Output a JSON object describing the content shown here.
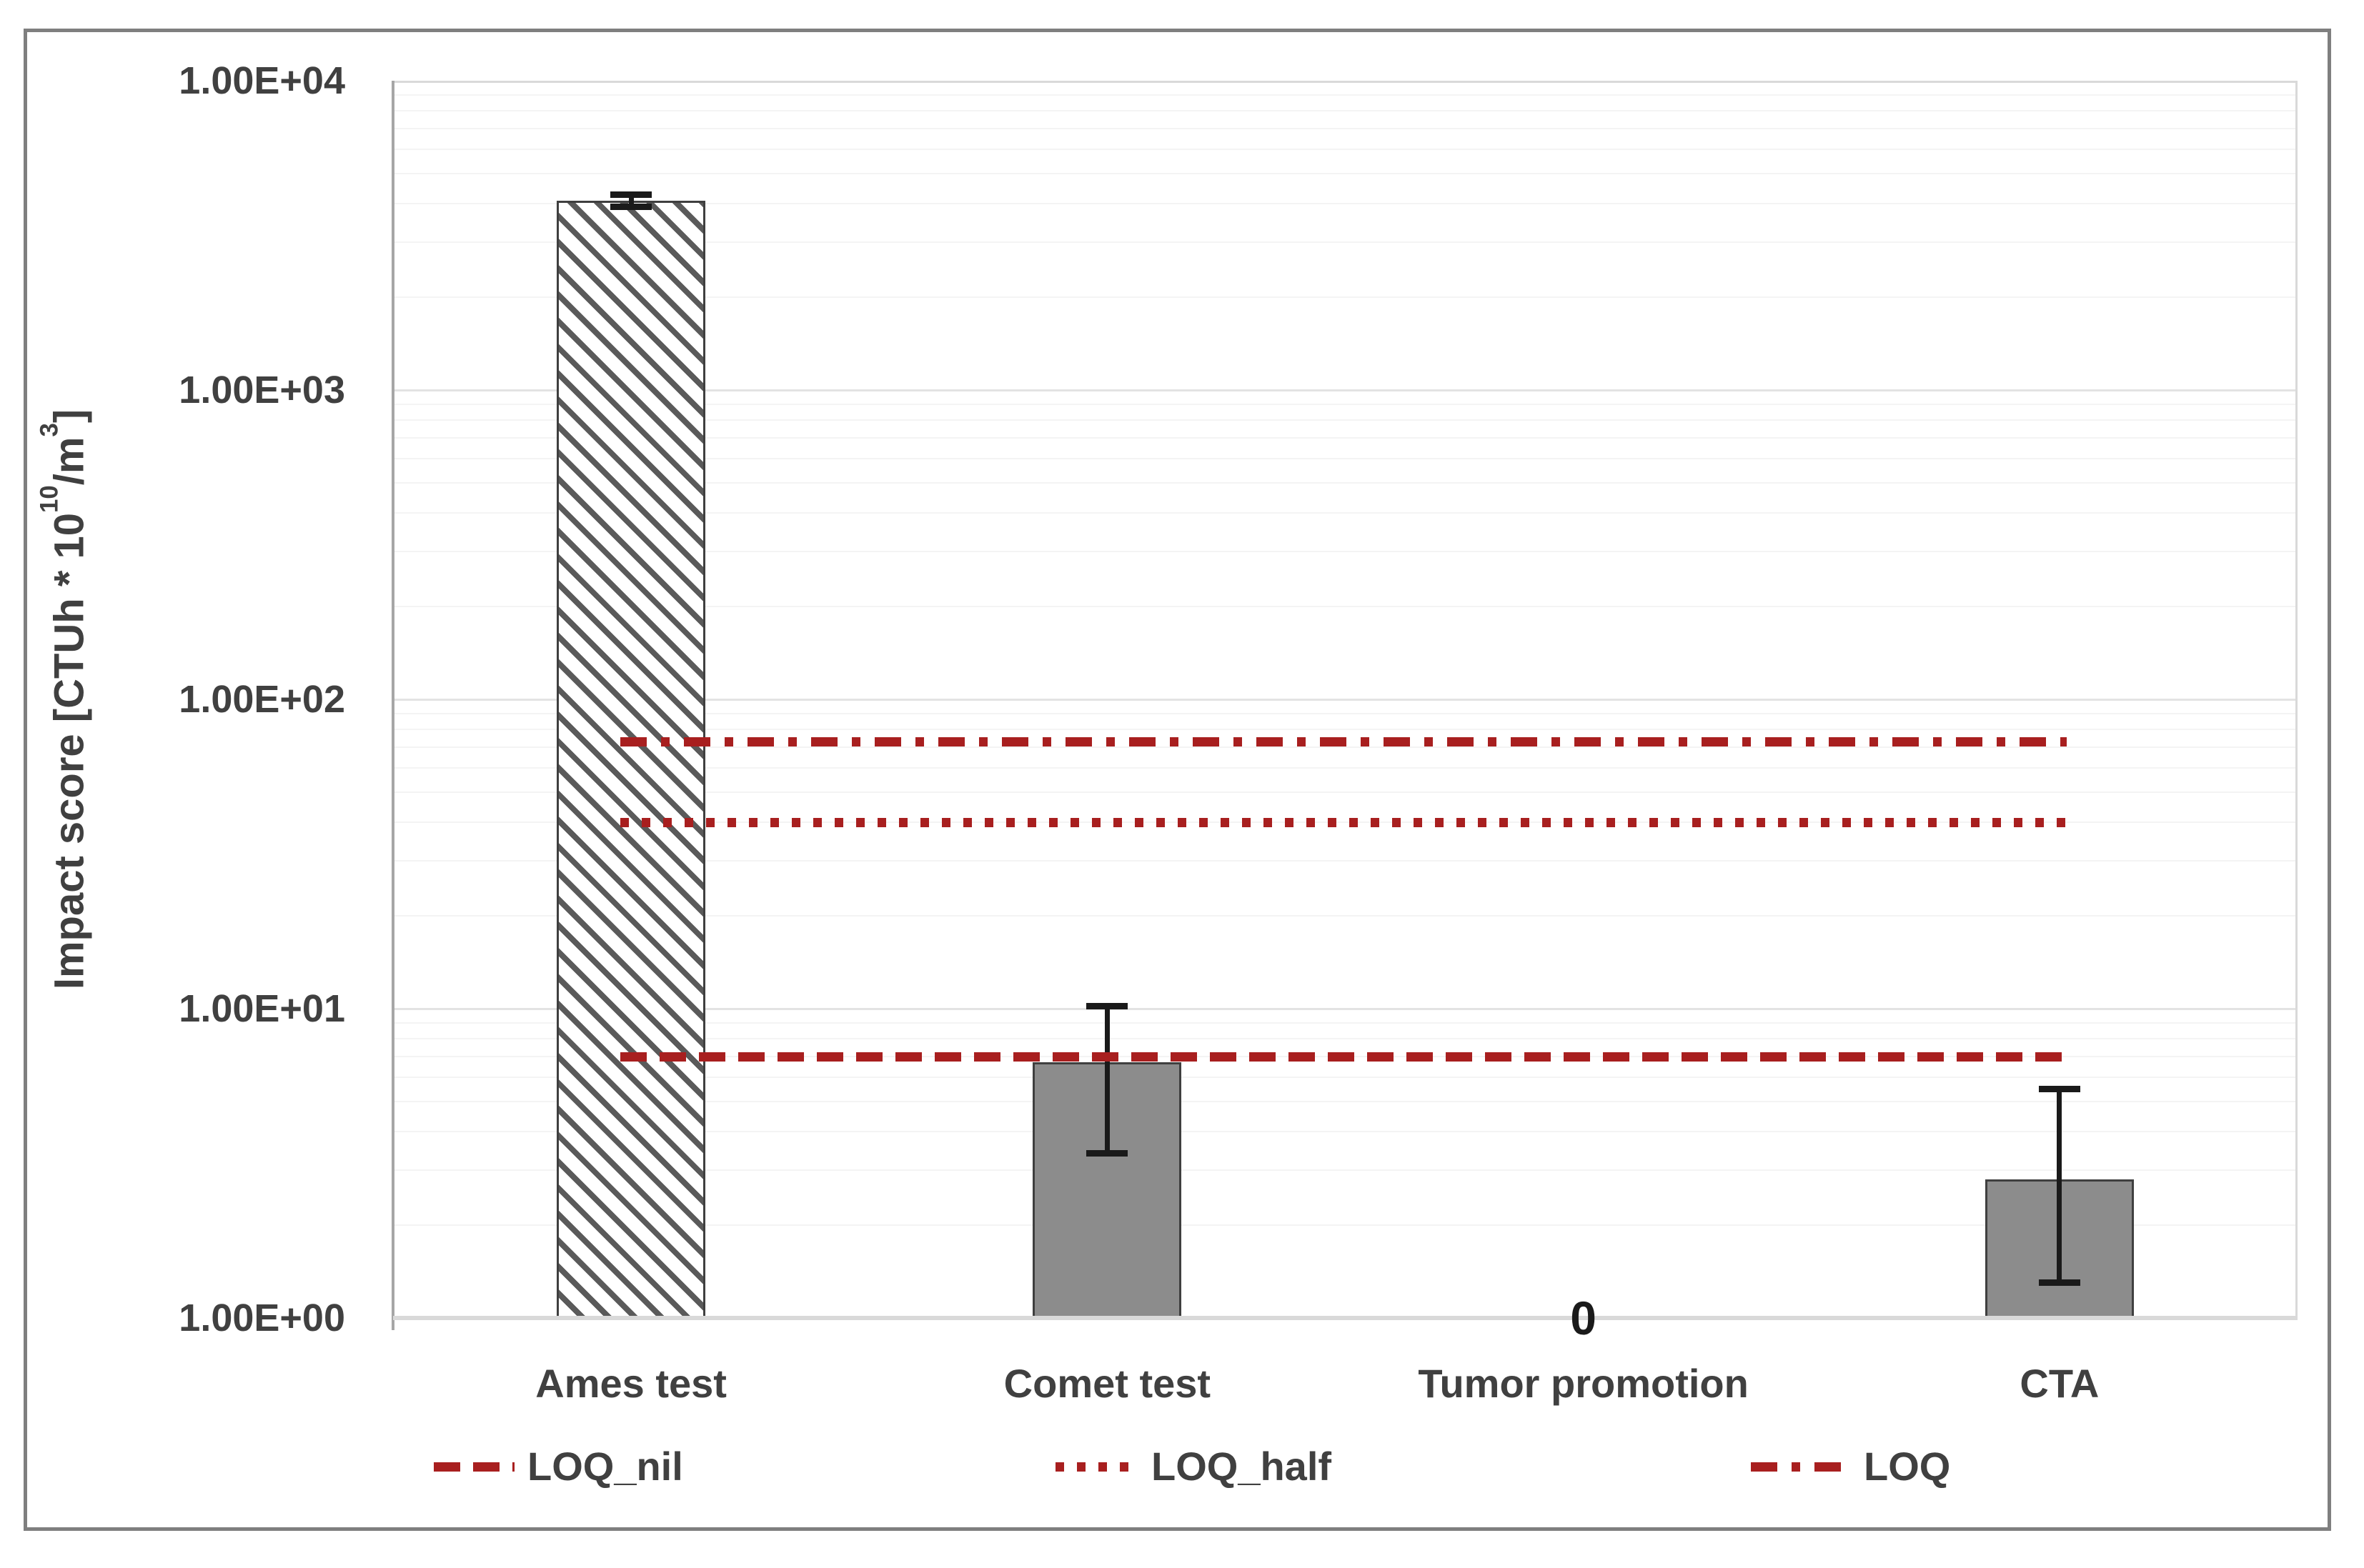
{
  "chart_data": {
    "type": "bar",
    "y_scale": "log10",
    "title": "",
    "ylabel_parts": {
      "pre": "Impact score [CTUh * 10",
      "sup1": "10",
      "mid": "/m",
      "sup2": "3",
      "post": "]"
    },
    "ylim": [
      1,
      10000
    ],
    "y_ticks": [
      "1.00E+04",
      "1.00E+03",
      "1.00E+02",
      "1.00E+01",
      "1.00E+00"
    ],
    "y_tick_values": [
      10000,
      1000,
      100,
      10,
      1
    ],
    "categories": [
      "Ames test",
      "Comet test",
      "Tumor promotion",
      "CTA"
    ],
    "series": [
      {
        "name": "Impact score",
        "values": [
          4100,
          6.7,
          0,
          2.8
        ],
        "bar_styles": [
          "hatched",
          "solid",
          "none",
          "solid"
        ],
        "error_bars": [
          {
            "low": 3900,
            "high": 4300
          },
          {
            "low": 3.4,
            "high": 10.2
          },
          null,
          {
            "low": 1.3,
            "high": 5.5
          }
        ],
        "data_labels": [
          null,
          null,
          "0",
          null
        ]
      }
    ],
    "reference_lines": [
      {
        "name": "LOQ_nil",
        "value": 7,
        "style": "dashed"
      },
      {
        "name": "LOQ_half",
        "value": 40,
        "style": "dotted"
      },
      {
        "name": "LOQ",
        "value": 73,
        "style": "dashdot"
      }
    ],
    "legend": {
      "position": "bottom",
      "items": [
        "LOQ_nil",
        "LOQ_half",
        "LOQ"
      ]
    },
    "grid": {
      "major": true,
      "minor": true
    },
    "colors": {
      "ref_line": "#a81f1f",
      "bar_fill": "#8c8c8c",
      "bar_edge": "#3f3f3f",
      "hatch_stripe": "#5a5a5a",
      "error_bar": "#1a1a1a",
      "label_text": "#404040",
      "data_label_text": "#1a1a1a",
      "gridline_major": "#e3e3e3",
      "gridline_minor": "#f4f4f4",
      "axis_line": "#a6a6a6",
      "plot_border": "#d9d9d9",
      "outer_border": "#7f7f7f",
      "background": "#ffffff"
    }
  }
}
